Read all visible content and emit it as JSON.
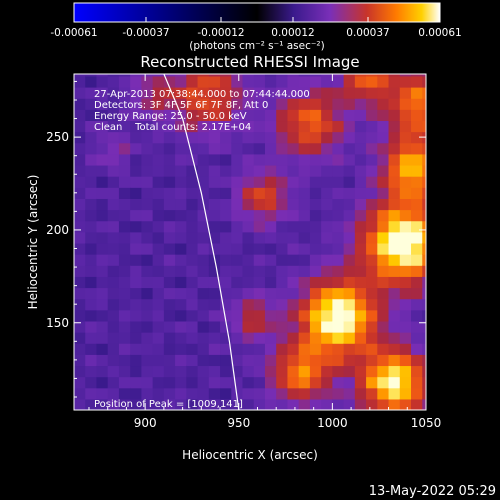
{
  "chart_data": {
    "type": "heatmap",
    "title": "Reconstructed RHESSI Image",
    "xlabel": "Heliocentric X (arcsec)",
    "ylabel": "Heliocentric Y (arcsec)",
    "xlim": [
      862,
      1050
    ],
    "ylim": [
      103,
      284
    ],
    "xticks": [
      900,
      950,
      1000,
      1050
    ],
    "xtick_labels": [
      "900",
      "950",
      "1000",
      "1050"
    ],
    "yticks": [
      150,
      200,
      250
    ],
    "ytick_labels": [
      "150",
      "200",
      "250"
    ],
    "colorbar": {
      "range": [
        -0.00061,
        0.00061
      ],
      "ticks": [
        -0.00061,
        -0.00037,
        -0.00012,
        0.00012,
        0.00037,
        0.00061
      ],
      "tick_labels": [
        "-0.00061",
        "-0.00037",
        "-0.00012",
        "0.00012",
        "0.00037",
        "0.00061"
      ],
      "units_label": "(photons cm⁻² s⁻¹ asec⁻²)",
      "colors": [
        "#0000ff",
        "#000000",
        "#3a1a8c",
        "#7a2fb8",
        "#c8342a",
        "#ff7a00",
        "#ffd000",
        "#ffffff"
      ]
    },
    "annotations": [
      "27-Apr-2013 07:38:44.000 to 07:44:44.000",
      "Detectors: 3F 4F 5F 6F 7F 8F, Att 0",
      "Energy Range: 25.0 - 50.0 keV",
      "Clean    Total counts: 2.17E+04"
    ],
    "peak_label": "Position of Peak = [1009,141]",
    "peak": [
      1009,
      141
    ],
    "limb_curve": [
      [
        910,
        284
      ],
      [
        920,
        260
      ],
      [
        930,
        220
      ],
      [
        938,
        180
      ],
      [
        945,
        140
      ],
      [
        950,
        103
      ]
    ],
    "grid": false
  },
  "footer": {
    "timestamp": "13-May-2022 05:29"
  }
}
